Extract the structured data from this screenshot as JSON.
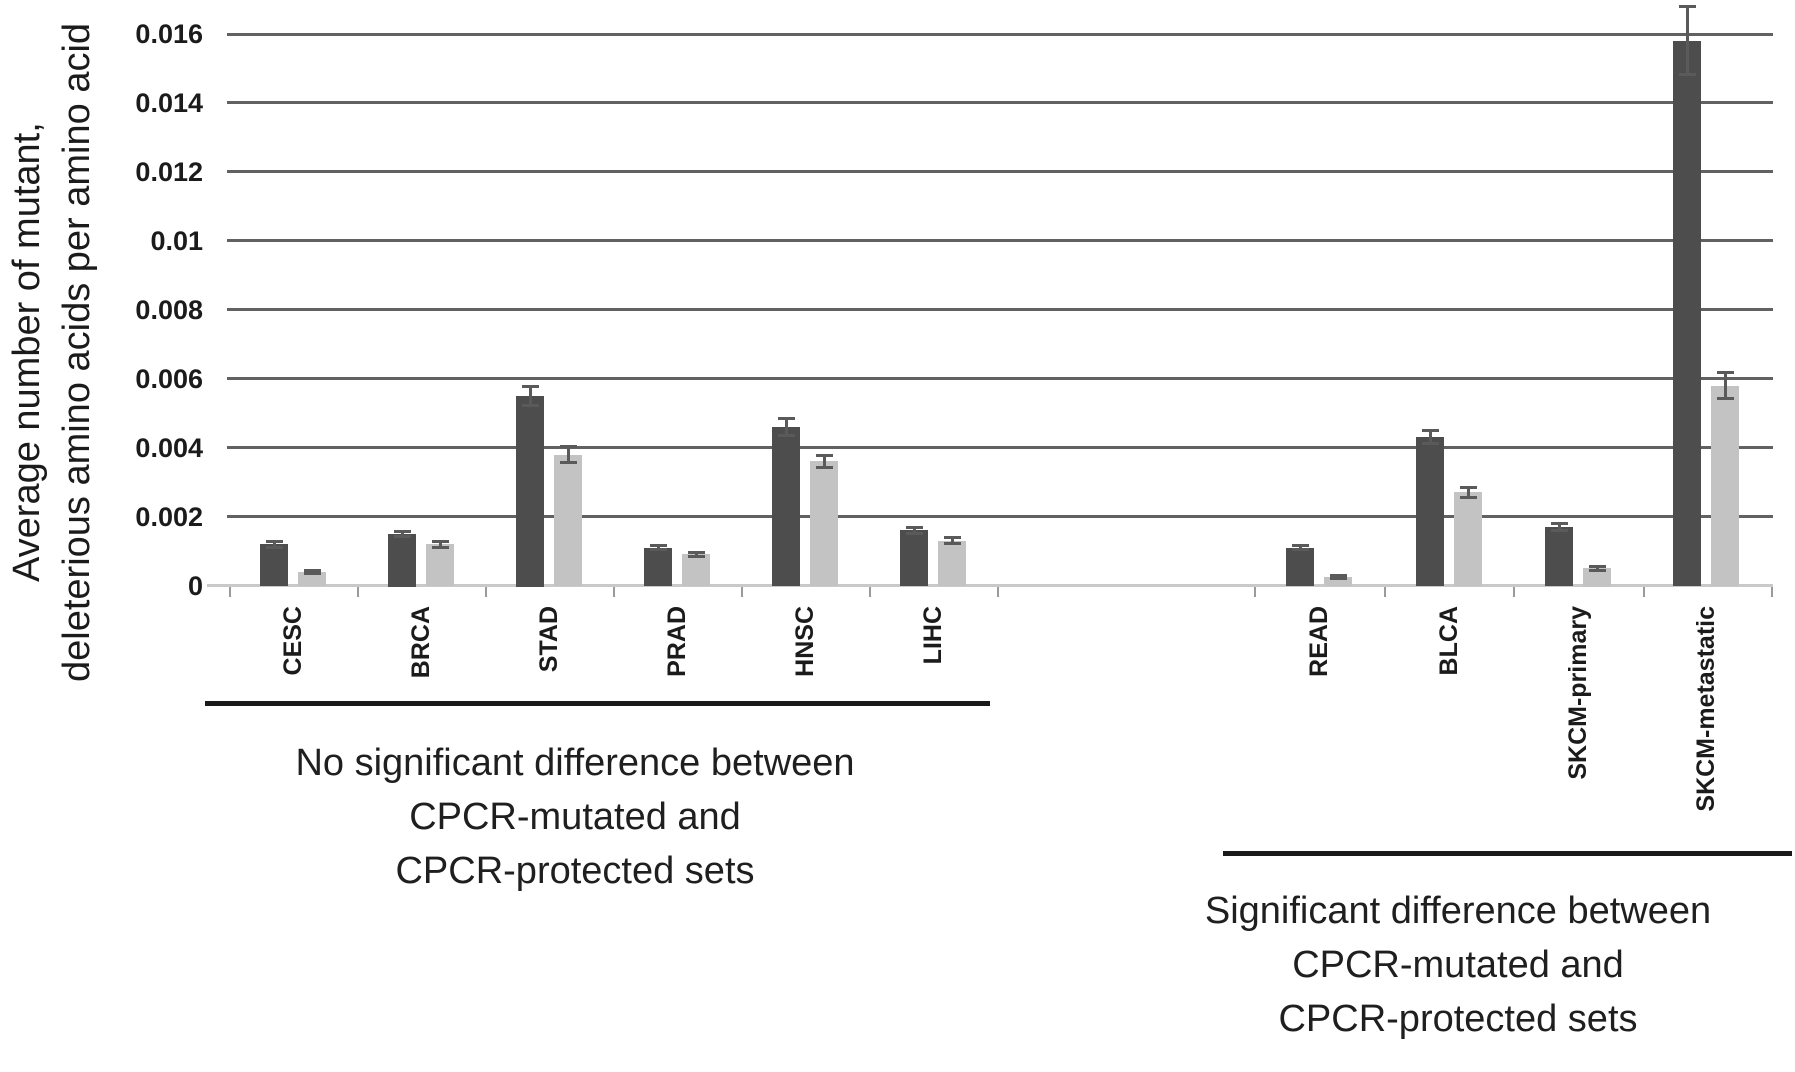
{
  "chart_data": {
    "type": "bar",
    "title": "",
    "ylabel_lines": [
      "Average number of mutant,",
      "deleterious amino acids per amino acid"
    ],
    "ylim": [
      0,
      0.016
    ],
    "y_ticks": [
      "0",
      "0.002",
      "0.004",
      "0.006",
      "0.008",
      "0.01",
      "0.012",
      "0.014",
      "0.016"
    ],
    "grid": true,
    "legend": "none",
    "categories": [
      "CESC",
      "BRCA",
      "STAD",
      "PRAD",
      "HNSC",
      "LIHC",
      "READ",
      "BLCA",
      "SKCM-primary",
      "SKCM-metastatic"
    ],
    "series": [
      {
        "name": "dark-gray-bars",
        "color": "#4d4d4d",
        "values": [
          0.0012,
          0.0015,
          0.0055,
          0.0011,
          0.0046,
          0.0016,
          0.0011,
          0.0043,
          0.0017,
          0.0158
        ],
        "errors": [
          0.0001,
          8e-05,
          0.0003,
          8e-05,
          0.00025,
          0.0001,
          8e-05,
          0.0002,
          0.00012,
          0.001
        ]
      },
      {
        "name": "light-gray-bars",
        "color": "#c3c3c3",
        "values": [
          0.0004,
          0.0012,
          0.0038,
          0.0009,
          0.0036,
          0.0013,
          0.00025,
          0.0027,
          0.0005,
          0.0058
        ],
        "errors": [
          6e-05,
          0.0001,
          0.00025,
          6e-05,
          0.0002,
          0.0001,
          6e-05,
          0.00015,
          8e-05,
          0.0004
        ]
      }
    ],
    "groups": [
      {
        "categories": [
          "CESC",
          "BRCA",
          "STAD",
          "PRAD",
          "HNSC",
          "LIHC"
        ],
        "label_lines": [
          "No significant difference between",
          "CPCR-mutated and",
          "CPCR-protected sets"
        ]
      },
      {
        "categories": [
          "READ",
          "BLCA",
          "SKCM-primary",
          "SKCM-metastatic"
        ],
        "label_lines": [
          "Significant difference between",
          "CPCR-mutated and",
          "CPCR-protected sets"
        ]
      }
    ],
    "colors": {
      "dark_bar": "#4d4d4d",
      "light_bar": "#c3c3c3",
      "gridline": "#616161",
      "axis_line": "#c9c9c9",
      "error_bar": "#5a5a5a",
      "text": "#1b1b1b"
    }
  }
}
